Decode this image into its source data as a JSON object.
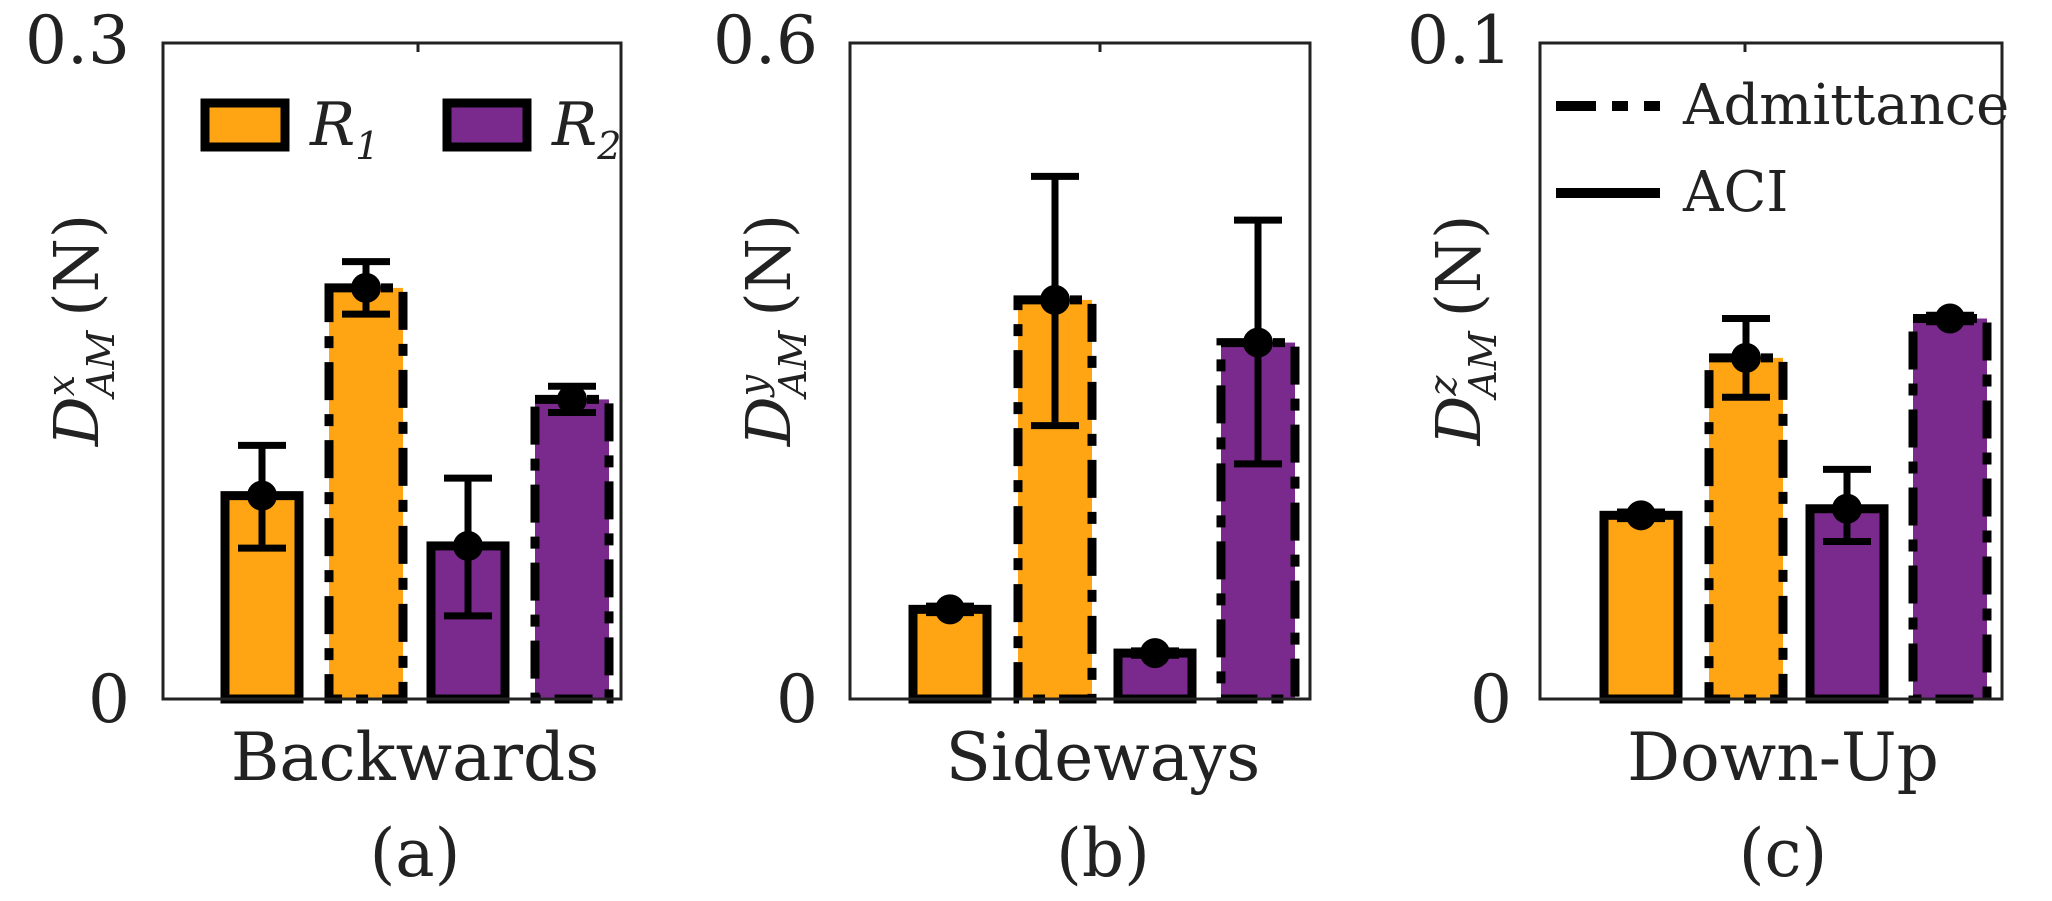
{
  "colors": {
    "r1": "#FFA514",
    "r2": "#7A2A8C",
    "edge": "#000000",
    "axis": "#222222"
  },
  "legend_r": {
    "r1": {
      "symbol": "R",
      "sub": "1"
    },
    "r2": {
      "symbol": "R",
      "sub": "2"
    }
  },
  "legend_lines": {
    "admittance": "Admittance",
    "aci": "ACI"
  },
  "chart_data": [
    {
      "type": "bar",
      "id": "a",
      "caption": "(a)",
      "xlabel": "Backwards",
      "ylabel": {
        "main": "D",
        "sup": "x",
        "sub": "AM",
        "unit": "(N)"
      },
      "ylim": [
        0,
        0.3
      ],
      "ytick_labels": [
        "0",
        "0.3"
      ],
      "series": [
        {
          "name": "R1 ACI",
          "robot": "R1",
          "method": "ACI",
          "value": 0.093,
          "error": [
            0.069,
            0.116
          ]
        },
        {
          "name": "R1 Admittance",
          "robot": "R1",
          "method": "Admittance",
          "value": 0.188,
          "error": [
            0.176,
            0.2
          ]
        },
        {
          "name": "R2 ACI",
          "robot": "R2",
          "method": "ACI",
          "value": 0.07,
          "error": [
            0.038,
            0.101
          ]
        },
        {
          "name": "R2 Admittance",
          "robot": "R2",
          "method": "Admittance",
          "value": 0.137,
          "error": [
            0.131,
            0.143
          ]
        }
      ]
    },
    {
      "type": "bar",
      "id": "b",
      "caption": "(b)",
      "xlabel": "Sideways",
      "ylabel": {
        "main": "D",
        "sup": "y",
        "sub": "AM",
        "unit": "(N)"
      },
      "ylim": [
        0,
        0.6
      ],
      "ytick_labels": [
        "0",
        "0.6"
      ],
      "series": [
        {
          "name": "R1 ACI",
          "robot": "R1",
          "method": "ACI",
          "value": 0.082,
          "error": [
            0.079,
            0.085
          ]
        },
        {
          "name": "R1 Admittance",
          "robot": "R1",
          "method": "Admittance",
          "value": 0.365,
          "error": [
            0.25,
            0.478
          ]
        },
        {
          "name": "R2 ACI",
          "robot": "R2",
          "method": "ACI",
          "value": 0.042,
          "error": [
            0.04,
            0.044
          ]
        },
        {
          "name": "R2 Admittance",
          "robot": "R2",
          "method": "Admittance",
          "value": 0.326,
          "error": [
            0.215,
            0.438
          ]
        }
      ]
    },
    {
      "type": "bar",
      "id": "c",
      "caption": "(c)",
      "xlabel": "Down-Up",
      "ylabel": {
        "main": "D",
        "sup": "z",
        "sub": "AM",
        "unit": "(N)"
      },
      "ylim": [
        0,
        0.1
      ],
      "ytick_labels": [
        "0",
        "0.1"
      ],
      "series": [
        {
          "name": "R1 ACI",
          "robot": "R1",
          "method": "ACI",
          "value": 0.028,
          "error": [
            0.0275,
            0.0285
          ]
        },
        {
          "name": "R1 Admittance",
          "robot": "R1",
          "method": "Admittance",
          "value": 0.052,
          "error": [
            0.046,
            0.058
          ]
        },
        {
          "name": "R2 ACI",
          "robot": "R2",
          "method": "ACI",
          "value": 0.029,
          "error": [
            0.024,
            0.035
          ]
        },
        {
          "name": "R2 Admittance",
          "robot": "R2",
          "method": "Admittance",
          "value": 0.058,
          "error": [
            0.0575,
            0.0585
          ]
        }
      ]
    }
  ]
}
